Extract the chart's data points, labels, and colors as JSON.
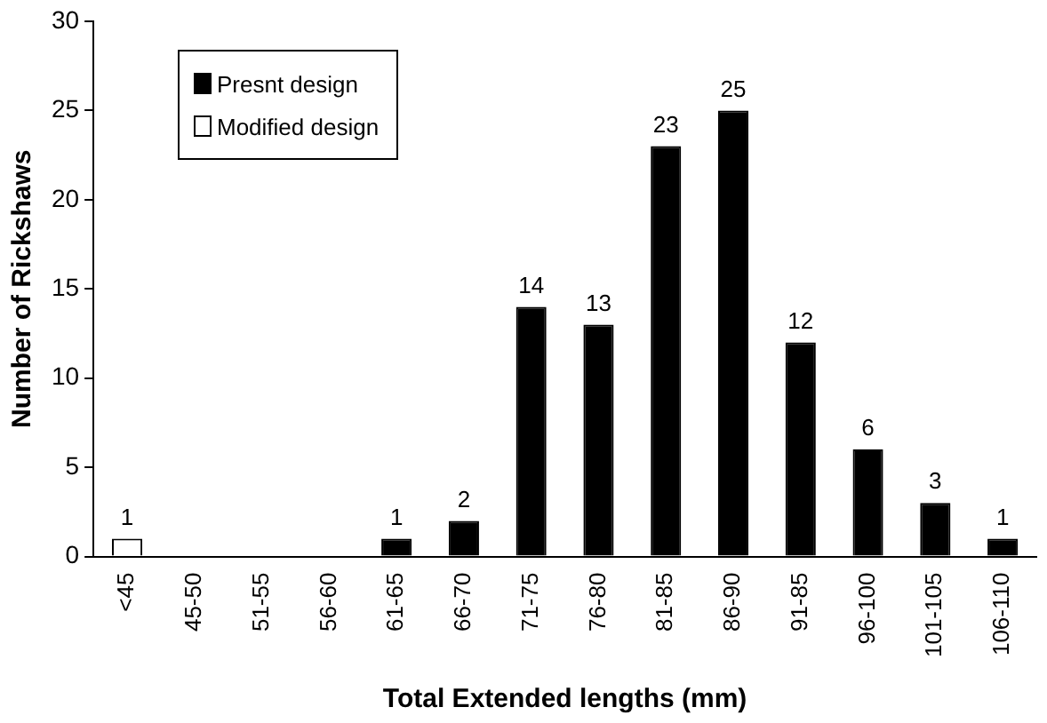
{
  "chart_data": {
    "type": "bar",
    "xlabel": "Total Extended lengths (mm)",
    "ylabel": "Number of Rickshaws",
    "categories": [
      "<45",
      "45-50",
      "51-55",
      "56-60",
      "61-65",
      "66-70",
      "71-75",
      "76-80",
      "81-85",
      "86-90",
      "91-85",
      "96-100",
      "101-105",
      "106-110"
    ],
    "series": [
      {
        "name": "Presnt design",
        "color": "#000000",
        "values": [
          null,
          0,
          0,
          0,
          1,
          2,
          14,
          13,
          23,
          25,
          12,
          6,
          3,
          1
        ],
        "value_labels": [
          null,
          null,
          null,
          null,
          "1",
          "2",
          "14",
          "13",
          "23",
          "25",
          "12",
          "6",
          "3",
          "1"
        ]
      },
      {
        "name": "Modified design",
        "color": "#ffffff",
        "values": [
          1,
          null,
          null,
          null,
          null,
          null,
          null,
          null,
          null,
          null,
          null,
          null,
          null,
          null
        ],
        "value_labels": [
          "1",
          null,
          null,
          null,
          null,
          null,
          null,
          null,
          null,
          null,
          null,
          null,
          null,
          null
        ]
      }
    ],
    "ylim": [
      0,
      30
    ],
    "yticks": [
      0,
      5,
      10,
      15,
      20,
      25,
      30
    ],
    "grid": false,
    "legend": "top left"
  }
}
